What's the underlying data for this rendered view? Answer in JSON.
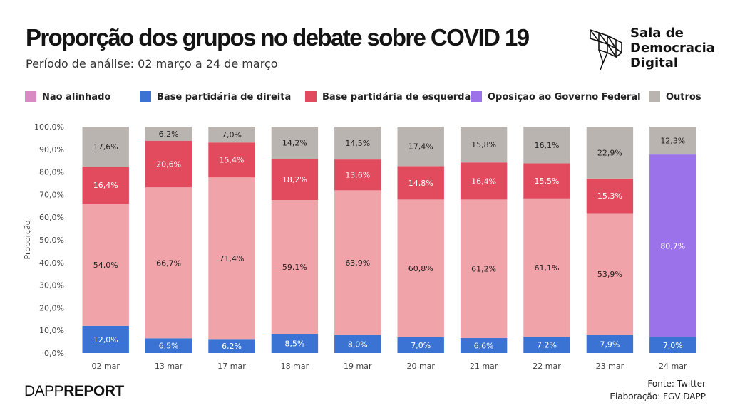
{
  "header": {
    "title": "Proporção dos grupos no debate sobre COVID 19",
    "subtitle": "Período de análise: 02 março a 24 de março"
  },
  "logo": {
    "line1": "Sala de",
    "line2": "Democracia",
    "line3": "Digital"
  },
  "footer": {
    "brand_prefix": "DAPP",
    "brand_suffix": "REPORT",
    "source": "Fonte: Twitter",
    "credit": "Elaboração: FGV DAPP"
  },
  "chart_data": {
    "type": "bar",
    "stacked": true,
    "ylabel": "Proporção",
    "ylim": [
      0,
      100
    ],
    "yticks": [
      "0,0%",
      "10,0%",
      "20,0%",
      "30,0%",
      "40,0%",
      "50,0%",
      "60,0%",
      "70,0%",
      "80,0%",
      "90,0%",
      "100,0%"
    ],
    "legend_position": "top",
    "grid": false,
    "categories": [
      "02 mar",
      "13 mar",
      "17 mar",
      "18 mar",
      "19 mar",
      "20 mar",
      "21 mar",
      "22 mar",
      "23 mar",
      "24 mar"
    ],
    "series": [
      {
        "name": "Base partidária de direita",
        "color": "#3a73d3",
        "values": [
          12.0,
          6.5,
          6.2,
          8.5,
          8.0,
          7.0,
          6.6,
          7.2,
          7.9,
          7.0
        ],
        "labels": [
          "12,0%",
          "6,5%",
          "6,2%",
          "8,5%",
          "8,0%",
          "7,0%",
          "6,6%",
          "7,2%",
          "7,9%",
          "7,0%"
        ]
      },
      {
        "name": "Não alinhado",
        "color": "#f0a3a8",
        "values": [
          54.0,
          66.7,
          71.4,
          59.1,
          63.9,
          60.8,
          61.2,
          61.1,
          53.9,
          null
        ],
        "labels": [
          "54,0%",
          "66,7%",
          "71,4%",
          "59,1%",
          "63,9%",
          "60,8%",
          "61,2%",
          "61,1%",
          "53,9%",
          null
        ]
      },
      {
        "name": "Base partidária de esquerda",
        "color": "#e24a5d",
        "values": [
          16.4,
          20.6,
          15.4,
          18.2,
          13.6,
          14.8,
          16.4,
          15.5,
          15.3,
          null
        ],
        "labels": [
          "16,4%",
          "20,6%",
          "15,4%",
          "18,2%",
          "13,6%",
          "14,8%",
          "16,4%",
          "15,5%",
          "15,3%",
          null
        ]
      },
      {
        "name": "Oposição ao Governo Federal",
        "color": "#9b72ea",
        "values": [
          null,
          null,
          null,
          null,
          null,
          null,
          null,
          null,
          null,
          80.7
        ],
        "labels": [
          null,
          null,
          null,
          null,
          null,
          null,
          null,
          null,
          null,
          "80,7%"
        ]
      },
      {
        "name": "Outros",
        "color": "#bab4b1",
        "values": [
          17.6,
          6.2,
          7.0,
          14.2,
          14.5,
          17.4,
          15.8,
          16.1,
          22.9,
          12.3
        ],
        "labels": [
          "17,6%",
          "6,2%",
          "7,0%",
          "14,2%",
          "14,5%",
          "17,4%",
          "15,8%",
          "16,1%",
          "22,9%",
          "12,3%"
        ]
      }
    ],
    "legend": [
      {
        "label": "Não alinhado",
        "color": "#d88ac4"
      },
      {
        "label": "Base partidária de direita",
        "color": "#3a73d3"
      },
      {
        "label": "Base partidária de esquerda",
        "color": "#e24a5d"
      },
      {
        "label": "Oposição ao Governo Federal",
        "color": "#9b72ea"
      },
      {
        "label": "Outros",
        "color": "#bab4b1"
      }
    ]
  }
}
